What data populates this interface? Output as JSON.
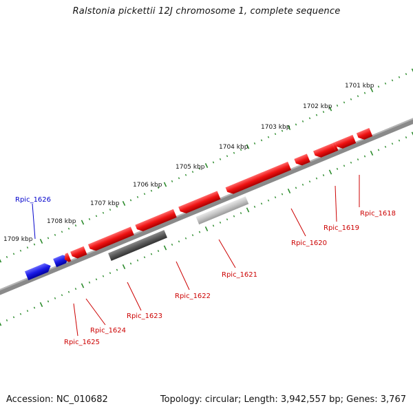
{
  "title": "Ralstonia pickettii 12J chromosome 1, complete sequence",
  "footer": {
    "accession": "Accession: NC_010682",
    "topology": "Topology: circular; Length: 3,942,557 bp; Genes: 3,767"
  },
  "colors": {
    "backbone": "#7a7a7a",
    "tick": "#2a8a2a",
    "forward_gene": "#e01010",
    "reverse_gene_blue": "#1111dd",
    "pseudo_dark": "#555555",
    "pseudo_light": "#bdbdbd",
    "red_label": "#cc0000",
    "blue_label": "#0000cc"
  },
  "scale_labels": [
    "1701 kbp",
    "1702 kbp",
    "1703 kbp",
    "1704 kbp",
    "1705 kbp",
    "1706 kbp",
    "1707 kbp",
    "1708 kbp",
    "1709 kbp"
  ],
  "gene_labels": [
    "Rpic_1618",
    "Rpic_1619",
    "Rpic_1620",
    "Rpic_1621",
    "Rpic_1622",
    "Rpic_1623",
    "Rpic_1624",
    "Rpic_1625",
    "Rpic_1626"
  ]
}
